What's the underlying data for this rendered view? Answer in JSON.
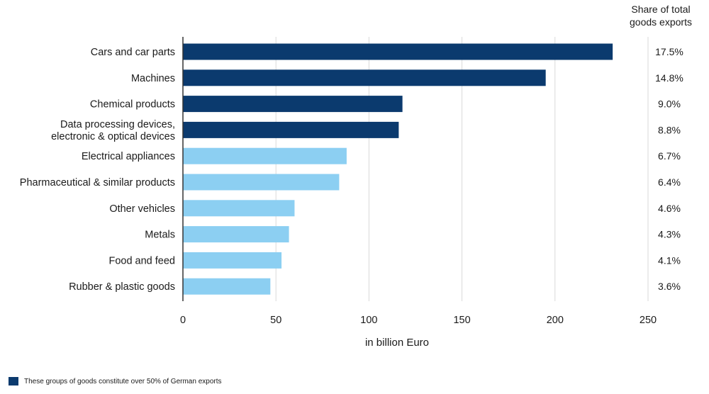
{
  "chart_data": {
    "type": "bar",
    "orientation": "horizontal",
    "categories": [
      "Cars and car parts",
      "Machines",
      "Chemical products",
      "Data processing devices, electronic & optical devices",
      "Electrical appliances",
      "Pharmaceutical & similar products",
      "Other vehicles",
      "Metals",
      "Food and feed",
      "Rubber & plastic goods"
    ],
    "category_lines": [
      [
        "Cars and car parts"
      ],
      [
        "Machines"
      ],
      [
        "Chemical products"
      ],
      [
        "Data processing devices,",
        "electronic & optical devices"
      ],
      [
        "Electrical appliances"
      ],
      [
        "Pharmaceutical & similar products"
      ],
      [
        "Other vehicles"
      ],
      [
        "Metals"
      ],
      [
        "Food and feed"
      ],
      [
        "Rubber & plastic goods"
      ]
    ],
    "values": [
      231,
      195,
      118,
      116,
      88,
      84,
      60,
      57,
      53,
      47
    ],
    "highlighted": [
      true,
      true,
      true,
      true,
      false,
      false,
      false,
      false,
      false,
      false
    ],
    "shares": [
      "17.5%",
      "14.8%",
      "9.0%",
      "8.8%",
      "6.7%",
      "6.4%",
      "4.6%",
      "4.3%",
      "4.1%",
      "3.6%"
    ],
    "share_header": "Share of total goods exports",
    "share_header_lines": [
      "Share of total",
      "goods exports"
    ],
    "xlabel": "in billion Euro",
    "xlim": [
      0,
      250
    ],
    "xticks": [
      0,
      50,
      100,
      150,
      200,
      250
    ],
    "grid": true,
    "colors": {
      "highlight": "#0b3a6e",
      "other": "#8ccff2",
      "grid": "#d9d9d9"
    },
    "legend_text": "These groups of goods constitute over 50% of German exports"
  }
}
